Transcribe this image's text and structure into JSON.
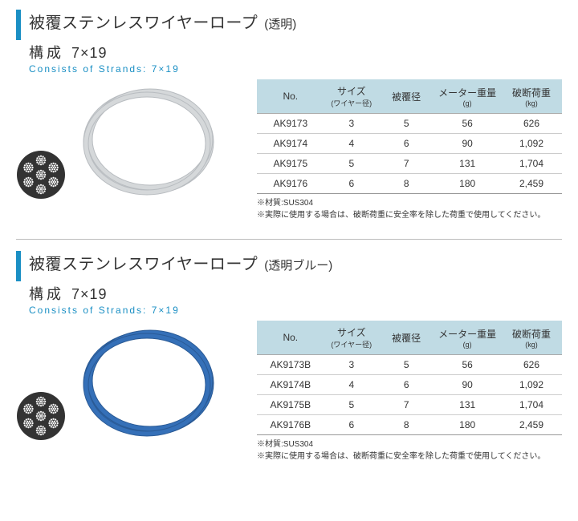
{
  "sections": [
    {
      "title_main": "被覆ステンレスワイヤーロープ",
      "title_paren": "(透明)",
      "composition_label": "構成",
      "composition_value": "7×19",
      "consists": "Consists of Strands: 7×19",
      "coil_color": "#d5d8da",
      "coil_stroke": "#b8bcc0",
      "table": {
        "headers": [
          {
            "main": "No.",
            "sub": ""
          },
          {
            "main": "サイズ",
            "sub": "(ワイヤー径)"
          },
          {
            "main": "被覆径",
            "sub": ""
          },
          {
            "main": "メーター重量",
            "sub": "(g)"
          },
          {
            "main": "破断荷重",
            "sub": "(kg)"
          }
        ],
        "col_widths": [
          "22%",
          "18%",
          "18%",
          "22%",
          "20%"
        ],
        "rows": [
          [
            "AK9173",
            "3",
            "5",
            "56",
            "626"
          ],
          [
            "AK9174",
            "4",
            "6",
            "90",
            "1,092"
          ],
          [
            "AK9175",
            "5",
            "7",
            "131",
            "1,704"
          ],
          [
            "AK9176",
            "6",
            "8",
            "180",
            "2,459"
          ]
        ]
      },
      "notes": [
        "※材質:SUS304",
        "※実際に使用する場合は、破断荷重に安全率を除した荷重で使用してください。"
      ]
    },
    {
      "title_main": "被覆ステンレスワイヤーロープ",
      "title_paren": "(透明ブルー)",
      "composition_label": "構成",
      "composition_value": "7×19",
      "consists": "Consists of Strands: 7×19",
      "coil_color": "#3570b8",
      "coil_stroke": "#2a5a95",
      "table": {
        "headers": [
          {
            "main": "No.",
            "sub": ""
          },
          {
            "main": "サイズ",
            "sub": "(ワイヤー径)"
          },
          {
            "main": "被覆径",
            "sub": ""
          },
          {
            "main": "メーター重量",
            "sub": "(g)"
          },
          {
            "main": "破断荷重",
            "sub": "(kg)"
          }
        ],
        "col_widths": [
          "22%",
          "18%",
          "18%",
          "22%",
          "20%"
        ],
        "rows": [
          [
            "AK9173B",
            "3",
            "5",
            "56",
            "626"
          ],
          [
            "AK9174B",
            "4",
            "6",
            "90",
            "1,092"
          ],
          [
            "AK9175B",
            "5",
            "7",
            "131",
            "1,704"
          ],
          [
            "AK9176B",
            "6",
            "8",
            "180",
            "2,459"
          ]
        ]
      },
      "notes": [
        "※材質:SUS304",
        "※実際に使用する場合は、破断荷重に安全率を除した荷重で使用してください。"
      ]
    }
  ],
  "colors": {
    "accent": "#1a8fc4",
    "header_bg": "#c0dbe4",
    "border": "#cccccc",
    "text": "#333333"
  }
}
